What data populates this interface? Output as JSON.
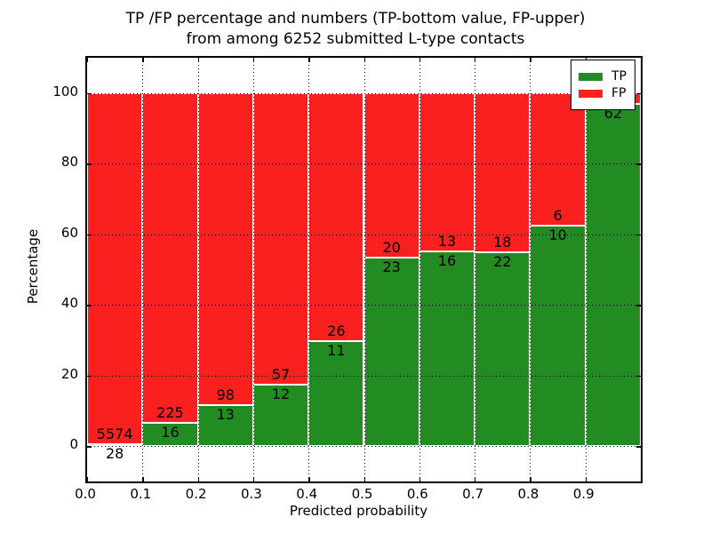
{
  "title": {
    "line1": "TP /FP percentage and numbers (TP-bottom value, FP-upper)",
    "line2": "from among 6252 submitted L-type contacts"
  },
  "axes": {
    "xlabel": "Predicted probability",
    "ylabel": "Percentage",
    "xlim": [
      0,
      1
    ],
    "ylim": [
      -10,
      110
    ],
    "yticks": [
      0,
      20,
      40,
      60,
      80,
      100
    ],
    "ytick_labels": [
      "0",
      "20",
      "40",
      "60",
      "80",
      "100"
    ],
    "xticks": [
      0.0,
      0.1,
      0.2,
      0.3,
      0.4,
      0.5,
      0.6,
      0.7,
      0.8,
      0.9
    ],
    "xtick_labels": [
      "0.0",
      "0.1",
      "0.2",
      "0.3",
      "0.4",
      "0.5",
      "0.6",
      "0.7",
      "0.8",
      "0.9"
    ],
    "grid_style": "dotted"
  },
  "legend": {
    "position": "upper-right",
    "items": [
      {
        "label": "TP",
        "color": "#228b22"
      },
      {
        "label": "FP",
        "color": "#fb2020"
      }
    ]
  },
  "colors": {
    "tp_green": "#228b22",
    "fp_red": "#fb2020",
    "grid": "#000000",
    "background": "#ffffff"
  },
  "chart_data": {
    "type": "bar",
    "stacked": true,
    "percent_normalized": true,
    "title": "TP /FP percentage and numbers (TP-bottom value, FP-upper) from among 6252 submitted L-type contacts",
    "xlabel": "Predicted probability",
    "ylabel": "Percentage",
    "bin_edges": [
      0.0,
      0.1,
      0.2,
      0.3,
      0.4,
      0.5,
      0.6,
      0.7,
      0.8,
      0.9,
      1.0
    ],
    "series": [
      {
        "name": "TP",
        "color": "#228b22",
        "counts": [
          28,
          16,
          13,
          12,
          11,
          23,
          16,
          22,
          10,
          62
        ]
      },
      {
        "name": "FP",
        "color": "#fb2020",
        "counts": [
          5574,
          225,
          98,
          57,
          26,
          20,
          13,
          18,
          6,
          2
        ]
      }
    ],
    "bar_value_labels": {
      "tp": [
        "28",
        "16",
        "13",
        "12",
        "11",
        "23",
        "16",
        "22",
        "10",
        "62"
      ],
      "fp": [
        "5574",
        "225",
        "98",
        "57",
        "26",
        "20",
        "13",
        "18",
        "6",
        ""
      ]
    },
    "note": "100%-stacked bars; the FP count label of the 0.9-1.0 bin is occluded by the legend box."
  }
}
